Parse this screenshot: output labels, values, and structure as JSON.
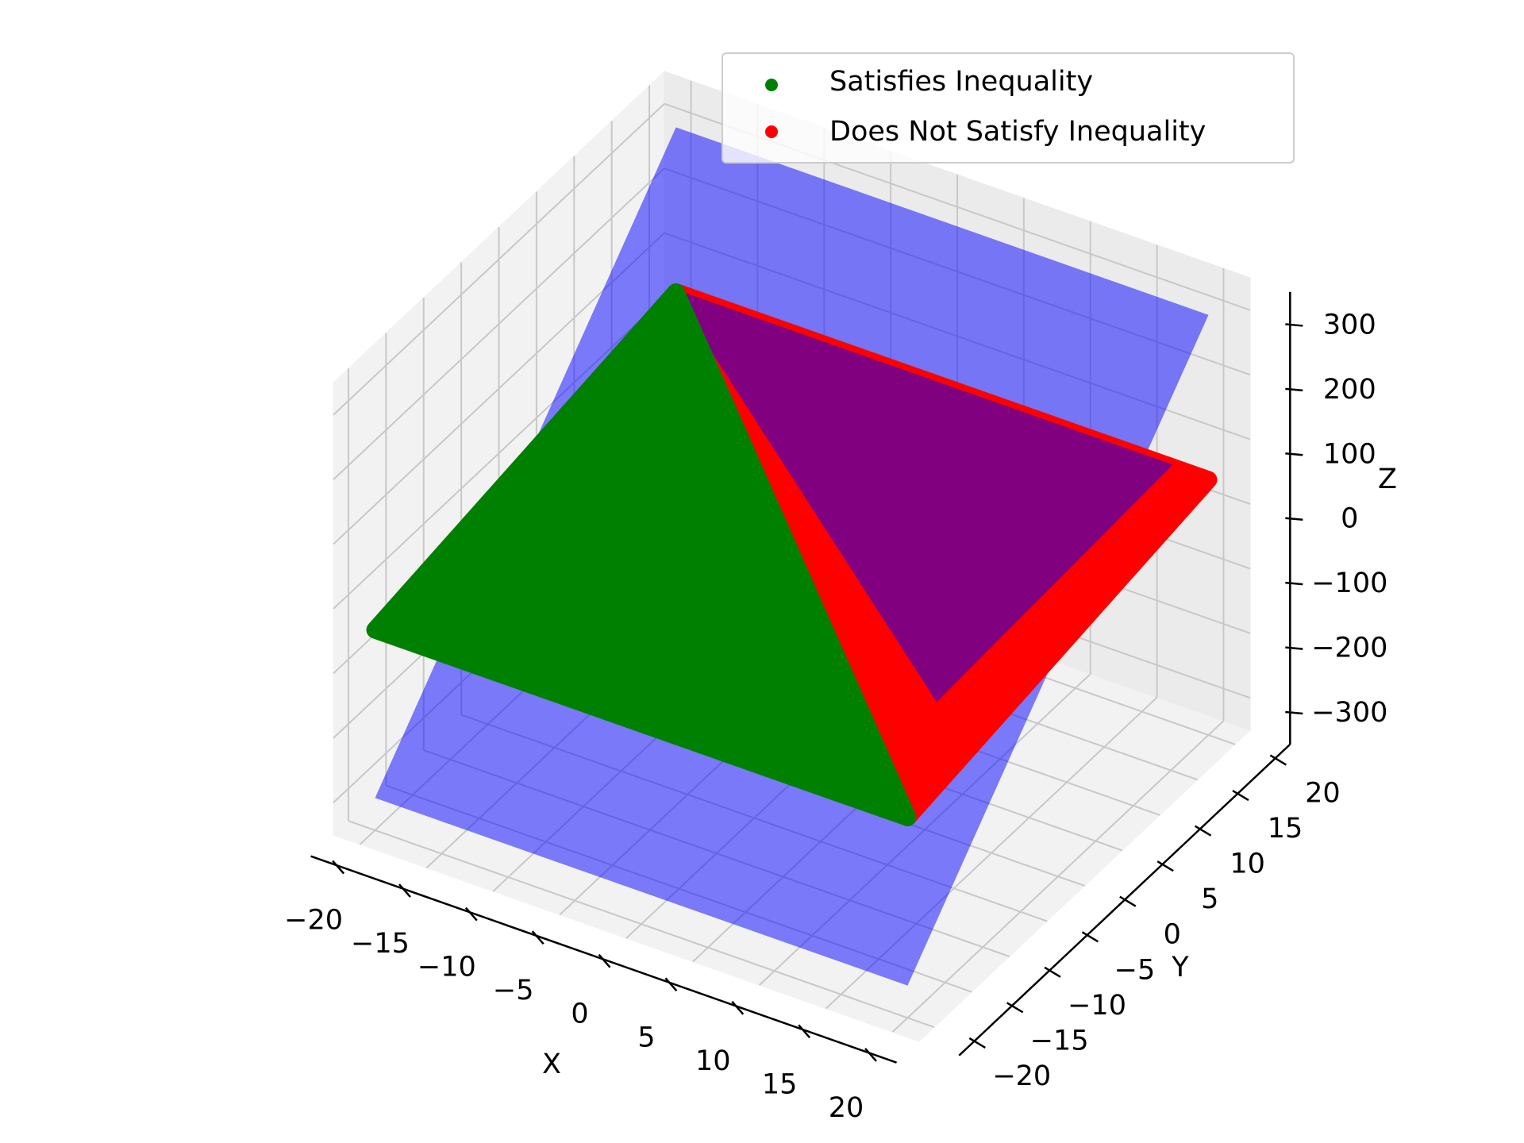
{
  "chart_data": {
    "type": "scatter",
    "projection": "3d",
    "xlabel": "X",
    "ylabel": "Y",
    "zlabel": "Z",
    "xlim": [
      -22,
      22
    ],
    "ylim": [
      -22,
      22
    ],
    "zlim": [
      -350,
      350
    ],
    "x_ticks": [
      -20,
      -15,
      -10,
      -5,
      0,
      5,
      10,
      15,
      20
    ],
    "y_ticks": [
      -20,
      -15,
      -10,
      -5,
      0,
      5,
      10,
      15,
      20
    ],
    "z_ticks": [
      -300,
      -200,
      -100,
      0,
      100,
      200,
      300
    ],
    "x_tick_labels": [
      "−20",
      "−15",
      "−10",
      "−5",
      "0",
      "5",
      "10",
      "15",
      "20"
    ],
    "y_tick_labels": [
      "−20",
      "−15",
      "−10",
      "−5",
      "0",
      "5",
      "10",
      "15",
      "20"
    ],
    "z_tick_labels": [
      "−300",
      "−200",
      "−100",
      "0",
      "100",
      "200",
      "300"
    ],
    "grid": true,
    "legend_position": "upper-right",
    "surface": {
      "color": "#0000ff",
      "alpha": 0.5,
      "x_range": [
        -20,
        20
      ],
      "y_range": [
        -20,
        20
      ],
      "corners_z": {
        "xmin_ymin": -300,
        "xmax_ymin": -300,
        "xmin_ymax": 300,
        "xmax_ymax": 300
      }
    },
    "series": [
      {
        "name": "Satisfies Inequality",
        "color": "#008000",
        "region": [
          [
            -20,
            -20,
            -40
          ],
          [
            20,
            -20,
            -40
          ],
          [
            20,
            20,
            45
          ],
          [
            -20,
            20,
            45
          ]
        ]
      },
      {
        "name": "Does Not Satisfy Inequality",
        "color": "#ff0000",
        "region": [
          [
            20,
            -20,
            -40
          ],
          [
            20,
            20,
            45
          ],
          [
            -20,
            20,
            45
          ]
        ]
      }
    ],
    "overlap_color": "#800080"
  }
}
